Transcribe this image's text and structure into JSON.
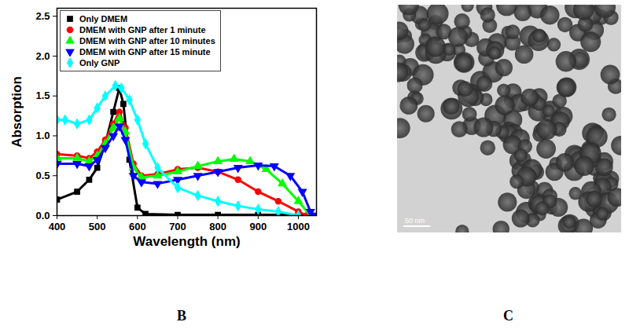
{
  "chart_data": {
    "type": "line",
    "xlabel": "Wavelength (nm)",
    "ylabel": "Absorption",
    "xlim": [
      400,
      1045
    ],
    "xticks": [
      400,
      500,
      600,
      700,
      800,
      900,
      1000
    ],
    "ylim": [
      0,
      2.6
    ],
    "yticks": [
      {
        "value": 0,
        "label": "0.0"
      },
      {
        "value": 0.5,
        "label": "0.5"
      },
      {
        "value": 1,
        "label": "1.0"
      },
      {
        "value": 1.5,
        "label": "1.5"
      },
      {
        "value": 2,
        "label": "2.0"
      },
      {
        "value": 2.5,
        "label": "2.5"
      }
    ],
    "grid": false,
    "legend": "top-left",
    "series": [
      {
        "name": "Only DMEM",
        "color": "#000000",
        "marker": "square",
        "x": [
          400,
          450,
          480,
          500,
          520,
          540,
          555,
          565,
          580,
          600,
          620,
          700,
          800,
          900,
          1000,
          1040
        ],
        "values": [
          0.2,
          0.3,
          0.45,
          0.6,
          0.9,
          1.3,
          1.6,
          1.4,
          0.7,
          0.1,
          0.02,
          0.01,
          0.01,
          0.01,
          0.01,
          0
        ]
      },
      {
        "name": "DMEM with GNP after 1 minute",
        "color": "#ff0000",
        "marker": "circle",
        "x": [
          400,
          450,
          480,
          500,
          520,
          540,
          555,
          570,
          590,
          610,
          650,
          700,
          750,
          800,
          850,
          900,
          950,
          1000,
          1020
        ],
        "values": [
          0.77,
          0.75,
          0.72,
          0.8,
          0.95,
          1.15,
          1.3,
          1.1,
          0.65,
          0.5,
          0.52,
          0.58,
          0.6,
          0.55,
          0.45,
          0.3,
          0.18,
          0.05,
          0
        ]
      },
      {
        "name": "DMEM with GNP after 10 minutes",
        "color": "#00ff00",
        "marker": "triangle",
        "x": [
          400,
          450,
          480,
          500,
          520,
          540,
          555,
          570,
          590,
          610,
          650,
          700,
          750,
          800,
          840,
          880,
          920,
          960,
          1000,
          1030
        ],
        "values": [
          0.72,
          0.72,
          0.68,
          0.75,
          0.9,
          1.1,
          1.22,
          1.05,
          0.6,
          0.48,
          0.5,
          0.55,
          0.62,
          0.68,
          0.71,
          0.68,
          0.58,
          0.4,
          0.18,
          0
        ]
      },
      {
        "name": "DMEM with GNP after 15 minute",
        "color": "#0000ff",
        "marker": "triangle-down",
        "x": [
          400,
          450,
          480,
          500,
          520,
          540,
          555,
          570,
          590,
          610,
          650,
          700,
          750,
          800,
          850,
          900,
          940,
          980,
          1010,
          1030,
          1040
        ],
        "values": [
          0.65,
          0.65,
          0.62,
          0.7,
          0.85,
          1.0,
          1.12,
          0.95,
          0.5,
          0.42,
          0.4,
          0.45,
          0.5,
          0.55,
          0.6,
          0.63,
          0.62,
          0.5,
          0.3,
          0.05,
          0
        ]
      },
      {
        "name": "Only GNP",
        "color": "#00ffff",
        "marker": "diamond",
        "x": [
          400,
          420,
          450,
          480,
          500,
          520,
          545,
          560,
          580,
          600,
          620,
          650,
          700,
          750,
          800,
          850,
          900,
          950,
          1000
        ],
        "values": [
          1.2,
          1.2,
          1.15,
          1.2,
          1.35,
          1.5,
          1.63,
          1.6,
          1.45,
          1.2,
          0.9,
          0.6,
          0.35,
          0.25,
          0.18,
          0.12,
          0.08,
          0.05,
          0
        ]
      }
    ]
  },
  "panel_labels": [
    "B",
    "C"
  ],
  "image": {
    "scale_bar": "50 nm"
  }
}
